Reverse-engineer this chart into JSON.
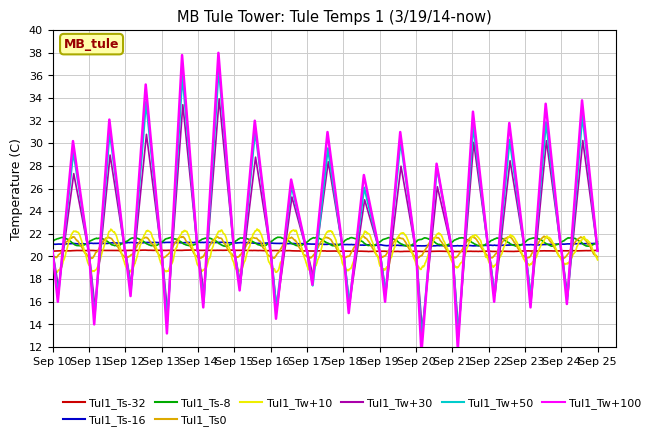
{
  "title": "MB Tule Tower: Tule Temps 1 (3/19/14-now)",
  "ylabel": "Temperature (C)",
  "ylim": [
    12,
    40
  ],
  "yticks": [
    12,
    14,
    16,
    18,
    20,
    22,
    24,
    26,
    28,
    30,
    32,
    34,
    36,
    38,
    40
  ],
  "xlim": [
    0,
    15.5
  ],
  "xtick_labels": [
    "Sep 10",
    "Sep 11",
    "Sep 12",
    "Sep 13",
    "Sep 14",
    "Sep 15",
    "Sep 16",
    "Sep 17",
    "Sep 18",
    "Sep 19",
    "Sep 20",
    "Sep 21",
    "Sep 22",
    "Sep 23",
    "Sep 24",
    "Sep 25"
  ],
  "series": {
    "Tul1_Ts-32": {
      "color": "#cc0000",
      "lw": 1.2
    },
    "Tul1_Ts-16": {
      "color": "#0000cc",
      "lw": 1.2
    },
    "Tul1_Ts-8": {
      "color": "#00aa00",
      "lw": 1.2
    },
    "Tul1_Ts0": {
      "color": "#ddaa00",
      "lw": 1.2
    },
    "Tul1_Tw+10": {
      "color": "#eeee00",
      "lw": 1.2
    },
    "Tul1_Tw+30": {
      "color": "#aa00aa",
      "lw": 1.2
    },
    "Tul1_Tw+50": {
      "color": "#00cccc",
      "lw": 1.5
    },
    "Tul1_Tw+100": {
      "color": "#ff00ff",
      "lw": 1.8
    }
  },
  "bg_color": "#ffffff",
  "grid_color": "#cccccc",
  "num_days": 15,
  "pts_per_day": 96,
  "base_temp": 20.5,
  "peak_heights": [
    30.2,
    16.0,
    32.1,
    14.0,
    35.2,
    16.5,
    37.8,
    13.2,
    38.0,
    15.5,
    32.0,
    17.0,
    26.8,
    14.5,
    31.0,
    17.5,
    27.2,
    15.0,
    31.0,
    16.0,
    28.2,
    11.5,
    32.8,
    11.8,
    31.8,
    16.0,
    33.5,
    15.5,
    33.8,
    15.8
  ],
  "legend_entries_row1": [
    "Tul1_Ts-32",
    "Tul1_Ts-16",
    "Tul1_Ts-8",
    "Tul1_Ts0",
    "Tul1_Tw+10",
    "Tul1_Tw+30"
  ],
  "legend_entries_row2": [
    "Tul1_Tw+50",
    "Tul1_Tw+100"
  ]
}
